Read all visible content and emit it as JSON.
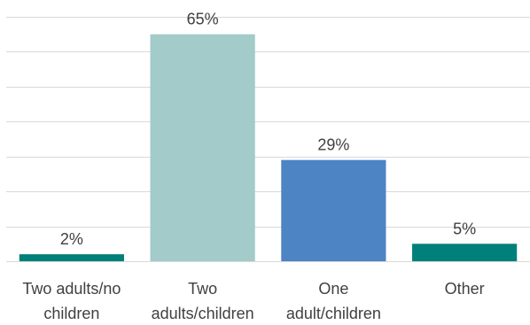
{
  "chart_data": {
    "type": "bar",
    "categories": [
      [
        "Two adults/no",
        "children"
      ],
      [
        "Two",
        "adults/children"
      ],
      [
        "One",
        "adult/children"
      ],
      [
        "Other"
      ]
    ],
    "values": [
      2,
      65,
      29,
      5
    ],
    "data_labels": [
      "2%",
      "65%",
      "29%",
      "5%"
    ],
    "colors": [
      "#00807a",
      "#a2cbc9",
      "#4c84c4",
      "#00807a"
    ],
    "ylim": [
      0,
      70
    ],
    "grid": true,
    "legend": "none",
    "title": "",
    "xlabel": "",
    "ylabel": ""
  }
}
